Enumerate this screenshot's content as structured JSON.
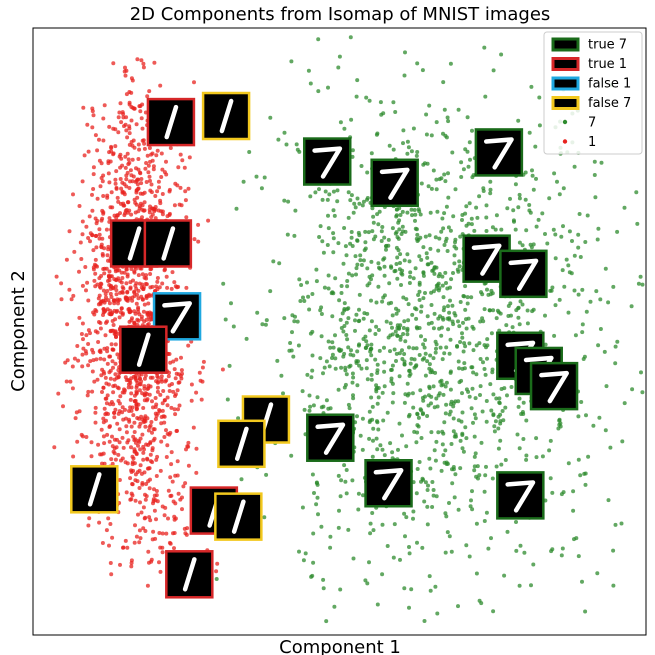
{
  "chart_data": {
    "type": "scatter",
    "title": "2D Components from Isomap of MNIST images",
    "xlabel": "Component 1",
    "ylabel": "Component 2",
    "xlim": [
      0,
      100
    ],
    "ylim": [
      0,
      100
    ],
    "ticks_visible": false,
    "grid": false,
    "legend_placement": "top-right",
    "legend": [
      {
        "label": "true 7",
        "kind": "box",
        "color": "#1a6b1a"
      },
      {
        "label": "true 1",
        "kind": "box",
        "color": "#d62728"
      },
      {
        "label": "false 1",
        "kind": "box",
        "color": "#1fa8e0"
      },
      {
        "label": "false 7",
        "kind": "box",
        "color": "#f2c81e"
      },
      {
        "label": "7",
        "kind": "marker",
        "color": "#2e8b2e"
      },
      {
        "label": "1",
        "kind": "marker",
        "color": "#e8231f"
      }
    ],
    "series": [
      {
        "name": "7",
        "color": "#2e8b2e",
        "cluster": {
          "x_range": [
            28,
            100
          ],
          "y_range": [
            2,
            99
          ],
          "approx_count": 1500
        }
      },
      {
        "name": "1",
        "color": "#e8231f",
        "cluster": {
          "x_range": [
            3,
            32
          ],
          "y_range": [
            8,
            95
          ],
          "approx_count": 1500
        }
      }
    ],
    "thumbnails": [
      {
        "digit": "1",
        "label": "true 1",
        "x": 22.5,
        "y": 84.5
      },
      {
        "digit": "1",
        "label": "false 7",
        "x": 31.5,
        "y": 85.5
      },
      {
        "digit": "1",
        "label": "true 1",
        "x": 16.5,
        "y": 64.5
      },
      {
        "digit": "1",
        "label": "true 1",
        "x": 22.0,
        "y": 64.5
      },
      {
        "digit": "7",
        "label": "false 1",
        "x": 23.5,
        "y": 52.5
      },
      {
        "digit": "1",
        "label": "true 1",
        "x": 18.0,
        "y": 47.0
      },
      {
        "digit": "1",
        "label": "false 7",
        "x": 10.0,
        "y": 24.0
      },
      {
        "digit": "1",
        "label": "false 7",
        "x": 38.0,
        "y": 35.5
      },
      {
        "digit": "1",
        "label": "false 7",
        "x": 34.0,
        "y": 31.5
      },
      {
        "digit": "1",
        "label": "true 1",
        "x": 29.5,
        "y": 20.5
      },
      {
        "digit": "1",
        "label": "false 7",
        "x": 33.5,
        "y": 19.5
      },
      {
        "digit": "1",
        "label": "true 1",
        "x": 25.5,
        "y": 10.0
      },
      {
        "digit": "7",
        "label": "true 7",
        "x": 48.0,
        "y": 78.0
      },
      {
        "digit": "7",
        "label": "true 7",
        "x": 59.0,
        "y": 74.5
      },
      {
        "digit": "7",
        "label": "true 7",
        "x": 76.0,
        "y": 79.5
      },
      {
        "digit": "7",
        "label": "true 7",
        "x": 74.0,
        "y": 62.0
      },
      {
        "digit": "7",
        "label": "true 7",
        "x": 80.0,
        "y": 59.5
      },
      {
        "digit": "7",
        "label": "true 7",
        "x": 79.5,
        "y": 46.0
      },
      {
        "digit": "7",
        "label": "true 7",
        "x": 82.5,
        "y": 43.5
      },
      {
        "digit": "7",
        "label": "true 7",
        "x": 85.0,
        "y": 41.0
      },
      {
        "digit": "7",
        "label": "true 7",
        "x": 48.5,
        "y": 32.5
      },
      {
        "digit": "7",
        "label": "true 7",
        "x": 58.0,
        "y": 25.0
      },
      {
        "digit": "7",
        "label": "true 7",
        "x": 79.5,
        "y": 23.0
      }
    ]
  }
}
